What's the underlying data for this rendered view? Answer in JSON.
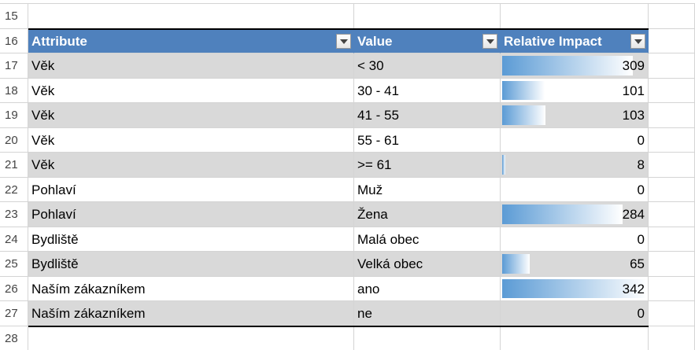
{
  "row_numbers": [
    15,
    16,
    17,
    18,
    19,
    20,
    21,
    22,
    23,
    24,
    25,
    26,
    27,
    28
  ],
  "table": {
    "headers": [
      "Attribute",
      "Value",
      "Relative Impact"
    ],
    "rows": [
      {
        "attribute": "Věk",
        "value": "< 30",
        "impact": 309
      },
      {
        "attribute": "Věk",
        "value": "30 - 41",
        "impact": 101
      },
      {
        "attribute": "Věk",
        "value": "41 - 55",
        "impact": 103
      },
      {
        "attribute": "Věk",
        "value": "55 - 61",
        "impact": 0
      },
      {
        "attribute": "Věk",
        "value": ">= 61",
        "impact": 8
      },
      {
        "attribute": "Pohlaví",
        "value": "Muž",
        "impact": 0
      },
      {
        "attribute": "Pohlaví",
        "value": "Žena",
        "impact": 284
      },
      {
        "attribute": "Bydliště",
        "value": "Malá obec",
        "impact": 0
      },
      {
        "attribute": "Bydliště",
        "value": "Velká obec",
        "impact": 65
      },
      {
        "attribute": "Naším zákazníkem",
        "value": "ano",
        "impact": 342
      },
      {
        "attribute": "Naším zákazníkem",
        "value": "ne",
        "impact": 0
      }
    ]
  }
}
